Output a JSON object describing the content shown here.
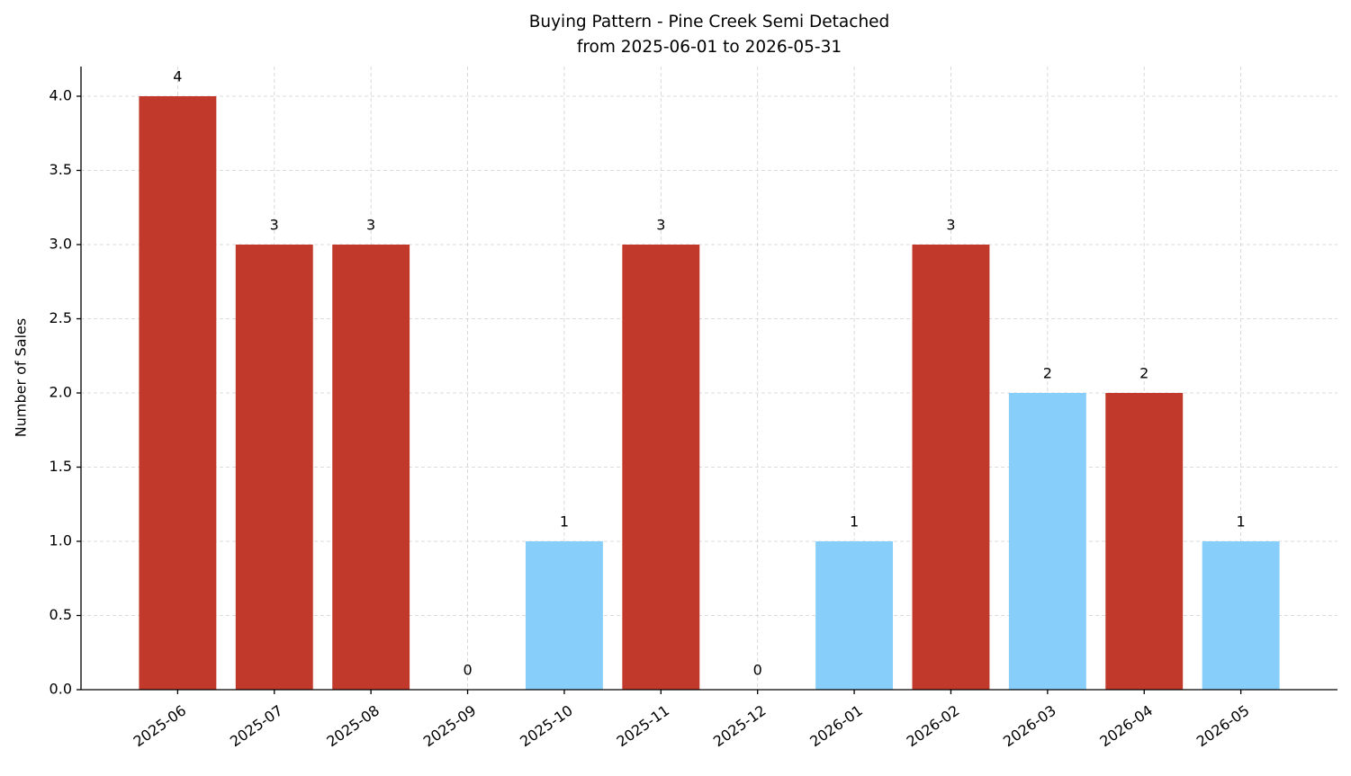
{
  "chart_data": {
    "type": "bar",
    "title": "Buying Pattern - Pine Creek Semi Detached",
    "subtitle": "from 2025-06-01 to 2026-05-31",
    "y_label": "Number of Sales",
    "categories": [
      "2025-06",
      "2025-07",
      "2025-08",
      "2025-09",
      "2025-10",
      "2025-11",
      "2025-12",
      "2026-01",
      "2026-02",
      "2026-03",
      "2026-04",
      "2026-05"
    ],
    "values": [
      4,
      3,
      3,
      0,
      1,
      3,
      0,
      1,
      3,
      2,
      2,
      1
    ],
    "colors": [
      "#c0392b",
      "#c0392b",
      "#c0392b",
      "#c0392b",
      "#87cefa",
      "#c0392b",
      "#c0392b",
      "#87cefa",
      "#c0392b",
      "#87cefa",
      "#c0392b",
      "#87cefa"
    ],
    "ylim": [
      0,
      4.2
    ],
    "yticks": [
      {
        "value": 0,
        "label": "0.0"
      },
      {
        "value": 0.5,
        "label": "0.5"
      },
      {
        "value": 1,
        "label": "1.0"
      },
      {
        "value": 1.5,
        "label": "1.5"
      },
      {
        "value": 2,
        "label": "2.0"
      },
      {
        "value": 2.5,
        "label": "2.5"
      },
      {
        "value": 3,
        "label": "3.0"
      },
      {
        "value": 3.5,
        "label": "3.5"
      },
      {
        "value": 4,
        "label": "4.0"
      }
    ],
    "grid": true
  }
}
